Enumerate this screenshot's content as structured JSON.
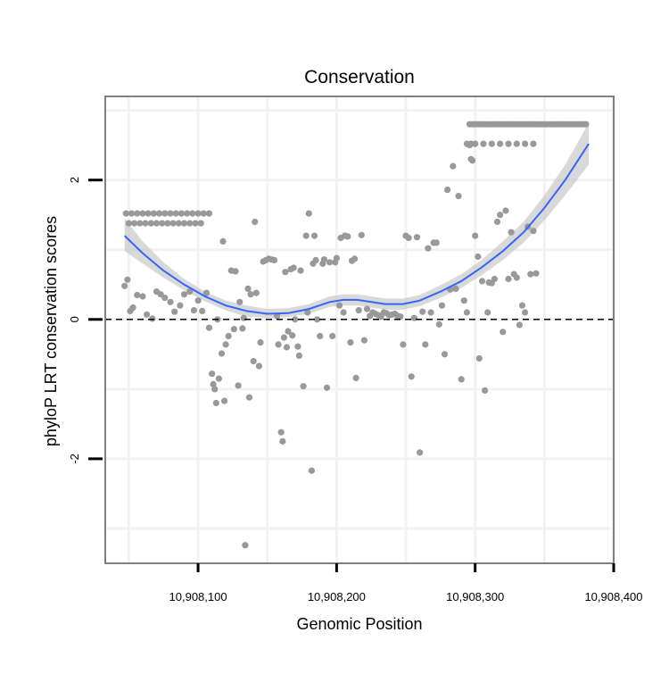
{
  "chart_data": {
    "type": "scatter",
    "title": "Conservation",
    "xlabel": "Genomic Position",
    "ylabel": "phyloP LRT conservation scores",
    "xlim": [
      10908033,
      10908400
    ],
    "ylim": [
      -3.5,
      3.2
    ],
    "x_ticks": [
      {
        "value": 10908100,
        "label": "10,908,100"
      },
      {
        "value": 10908200,
        "label": "10,908,200"
      },
      {
        "value": 10908300,
        "label": "10,908,300"
      },
      {
        "value": 10908400,
        "label": "10,908,400"
      }
    ],
    "y_ticks": [
      {
        "value": -2,
        "label": "-2"
      },
      {
        "value": 0,
        "label": "0"
      },
      {
        "value": 2,
        "label": "2"
      }
    ],
    "x_minor_grid": [
      10908050,
      10908150,
      10908250,
      10908350
    ],
    "y_minor_grid": [
      -3,
      -1,
      1,
      3
    ],
    "grid": true,
    "reference_line": {
      "y": 0,
      "style": "dashed"
    },
    "colors": {
      "points": "#999999",
      "smooth_line": "#3366FF",
      "ribbon": "#BFBFBF",
      "panel_border": "#808080",
      "grid": "#F2F2F2"
    },
    "series": [
      {
        "kind": "points",
        "points": [
          [
            10908048,
            1.52
          ],
          [
            10908052,
            1.52
          ],
          [
            10908056,
            1.52
          ],
          [
            10908060,
            1.52
          ],
          [
            10908064,
            1.52
          ],
          [
            10908068,
            1.52
          ],
          [
            10908072,
            1.52
          ],
          [
            10908076,
            1.52
          ],
          [
            10908080,
            1.52
          ],
          [
            10908084,
            1.52
          ],
          [
            10908088,
            1.52
          ],
          [
            10908092,
            1.52
          ],
          [
            10908096,
            1.52
          ],
          [
            10908100,
            1.52
          ],
          [
            10908104,
            1.52
          ],
          [
            10908108,
            1.52
          ],
          [
            10908050,
            1.38
          ],
          [
            10908054,
            1.38
          ],
          [
            10908058,
            1.38
          ],
          [
            10908062,
            1.38
          ],
          [
            10908066,
            1.38
          ],
          [
            10908070,
            1.38
          ],
          [
            10908074,
            1.38
          ],
          [
            10908078,
            1.38
          ],
          [
            10908082,
            1.38
          ],
          [
            10908086,
            1.38
          ],
          [
            10908090,
            1.38
          ],
          [
            10908094,
            1.38
          ],
          [
            10908098,
            1.38
          ],
          [
            10908102,
            1.38
          ],
          [
            10908047,
            0.48
          ],
          [
            10908049,
            0.57
          ],
          [
            10908051,
            0.12
          ],
          [
            10908053,
            0.17
          ],
          [
            10908056,
            0.35
          ],
          [
            10908060,
            0.33
          ],
          [
            10908063,
            0.07
          ],
          [
            10908067,
            0.01
          ],
          [
            10908070,
            0.4
          ],
          [
            10908073,
            0.36
          ],
          [
            10908076,
            0.31
          ],
          [
            10908080,
            0.25
          ],
          [
            10908083,
            0.11
          ],
          [
            10908087,
            0.2
          ],
          [
            10908090,
            0.36
          ],
          [
            10908094,
            0.4
          ],
          [
            10908097,
            0.13
          ],
          [
            10908100,
            0.27
          ],
          [
            10908103,
            0.12
          ],
          [
            10908106,
            0.38
          ],
          [
            10908108,
            -0.12
          ],
          [
            10908110,
            -0.78
          ],
          [
            10908111,
            -0.93
          ],
          [
            10908112,
            -1.0
          ],
          [
            10908113,
            -1.2
          ],
          [
            10908114,
            0.0
          ],
          [
            10908115,
            -0.85
          ],
          [
            10908117,
            -0.49
          ],
          [
            10908118,
            1.12
          ],
          [
            10908119,
            -1.17
          ],
          [
            10908120,
            -0.36
          ],
          [
            10908122,
            -0.24
          ],
          [
            10908124,
            0.7
          ],
          [
            10908126,
            -0.14
          ],
          [
            10908127,
            0.69
          ],
          [
            10908129,
            -0.95
          ],
          [
            10908130,
            0.25
          ],
          [
            10908132,
            -0.13
          ],
          [
            10908133,
            0.02
          ],
          [
            10908134,
            -3.24
          ],
          [
            10908136,
            0.44
          ],
          [
            10908137,
            -1.12
          ],
          [
            10908138,
            0.36
          ],
          [
            10908140,
            -0.6
          ],
          [
            10908141,
            1.4
          ],
          [
            10908142,
            0.38
          ],
          [
            10908144,
            -0.67
          ],
          [
            10908145,
            -0.33
          ],
          [
            10908147,
            0.83
          ],
          [
            10908149,
            0.85
          ],
          [
            10908151,
            0.87
          ],
          [
            10908153,
            0.86
          ],
          [
            10908155,
            0.85
          ],
          [
            10908157,
            0.05
          ],
          [
            10908158,
            -0.36
          ],
          [
            10908160,
            -1.62
          ],
          [
            10908161,
            -1.75
          ],
          [
            10908162,
            -0.26
          ],
          [
            10908163,
            0.68
          ],
          [
            10908164,
            -0.4
          ],
          [
            10908165,
            -0.17
          ],
          [
            10908167,
            0.72
          ],
          [
            10908168,
            -0.23
          ],
          [
            10908169,
            0.74
          ],
          [
            10908170,
            0.0
          ],
          [
            10908172,
            -0.39
          ],
          [
            10908173,
            -0.52
          ],
          [
            10908174,
            0.7
          ],
          [
            10908176,
            -0.96
          ],
          [
            10908178,
            1.2
          ],
          [
            10908179,
            0.1
          ],
          [
            10908180,
            1.52
          ],
          [
            10908182,
            -2.17
          ],
          [
            10908183,
            0.8
          ],
          [
            10908184,
            1.2
          ],
          [
            10908185,
            0.85
          ],
          [
            10908186,
            0.0
          ],
          [
            10908188,
            -0.24
          ],
          [
            10908190,
            0.8
          ],
          [
            10908191,
            0.86
          ],
          [
            10908193,
            -0.98
          ],
          [
            10908195,
            0.82
          ],
          [
            10908197,
            -0.24
          ],
          [
            10908199,
            0.82
          ],
          [
            10908200,
            0.88
          ],
          [
            10908202,
            0.2
          ],
          [
            10908203,
            1.17
          ],
          [
            10908205,
            0.1
          ],
          [
            10908206,
            1.2
          ],
          [
            10908208,
            1.19
          ],
          [
            10908210,
            -0.33
          ],
          [
            10908211,
            0.84
          ],
          [
            10908213,
            0.87
          ],
          [
            10908214,
            -0.84
          ],
          [
            10908216,
            0.13
          ],
          [
            10908218,
            1.21
          ],
          [
            10908220,
            -0.3
          ],
          [
            10908222,
            0.15
          ],
          [
            10908224,
            0.05
          ],
          [
            10908226,
            0.1
          ],
          [
            10908228,
            0.08
          ],
          [
            10908230,
            0.06
          ],
          [
            10908232,
            0.04
          ],
          [
            10908234,
            0.1
          ],
          [
            10908236,
            0.09
          ],
          [
            10908238,
            0.06
          ],
          [
            10908240,
            0.07
          ],
          [
            10908242,
            0.08
          ],
          [
            10908244,
            0.05
          ],
          [
            10908246,
            0.04
          ],
          [
            10908248,
            -0.36
          ],
          [
            10908250,
            1.2
          ],
          [
            10908252,
            1.17
          ],
          [
            10908254,
            -0.82
          ],
          [
            10908256,
            0.02
          ],
          [
            10908258,
            1.18
          ],
          [
            10908260,
            -1.91
          ],
          [
            10908262,
            0.11
          ],
          [
            10908264,
            -0.36
          ],
          [
            10908266,
            1.02
          ],
          [
            10908268,
            0.1
          ],
          [
            10908270,
            1.1
          ],
          [
            10908272,
            1.1
          ],
          [
            10908274,
            -0.07
          ],
          [
            10908276,
            0.2
          ],
          [
            10908278,
            -0.5
          ],
          [
            10908280,
            1.86
          ],
          [
            10908282,
            0.43
          ],
          [
            10908284,
            2.2
          ],
          [
            10908286,
            0.44
          ],
          [
            10908288,
            1.77
          ],
          [
            10908290,
            -0.86
          ],
          [
            10908292,
            0.27
          ],
          [
            10908294,
            0.1
          ],
          [
            10908296,
            2.5
          ],
          [
            10908297,
            2.3
          ],
          [
            10908298,
            2.28
          ],
          [
            10908300,
            1.2
          ],
          [
            10908302,
            0.9
          ],
          [
            10908303,
            -0.56
          ],
          [
            10908305,
            0.55
          ],
          [
            10908307,
            -1.02
          ],
          [
            10908309,
            0.1
          ],
          [
            10908310,
            0.53
          ],
          [
            10908312,
            0.52
          ],
          [
            10908314,
            0.58
          ],
          [
            10908316,
            1.4
          ],
          [
            10908318,
            1.5
          ],
          [
            10908320,
            -0.18
          ],
          [
            10908322,
            1.56
          ],
          [
            10908324,
            0.58
          ],
          [
            10908326,
            1.25
          ],
          [
            10908328,
            0.65
          ],
          [
            10908330,
            0.6
          ],
          [
            10908332,
            -0.08
          ],
          [
            10908334,
            0.2
          ],
          [
            10908336,
            0.1
          ],
          [
            10908338,
            1.33
          ],
          [
            10908340,
            0.65
          ],
          [
            10908342,
            1.27
          ],
          [
            10908344,
            0.66
          ],
          [
            10908294,
            2.52
          ],
          [
            10908297,
            2.52
          ],
          [
            10908300,
            2.52
          ],
          [
            10908306,
            2.52
          ],
          [
            10908312,
            2.52
          ],
          [
            10908318,
            2.52
          ],
          [
            10908324,
            2.52
          ],
          [
            10908330,
            2.52
          ],
          [
            10908336,
            2.52
          ],
          [
            10908342,
            2.52
          ],
          [
            10908296,
            2.8
          ],
          [
            10908298,
            2.8
          ],
          [
            10908300,
            2.8
          ],
          [
            10908302,
            2.8
          ],
          [
            10908304,
            2.8
          ],
          [
            10908306,
            2.8
          ],
          [
            10908308,
            2.8
          ],
          [
            10908310,
            2.8
          ],
          [
            10908312,
            2.8
          ],
          [
            10908314,
            2.8
          ],
          [
            10908316,
            2.8
          ],
          [
            10908318,
            2.8
          ],
          [
            10908320,
            2.8
          ],
          [
            10908322,
            2.8
          ],
          [
            10908324,
            2.8
          ],
          [
            10908326,
            2.8
          ],
          [
            10908328,
            2.8
          ],
          [
            10908330,
            2.8
          ],
          [
            10908332,
            2.8
          ],
          [
            10908334,
            2.8
          ],
          [
            10908336,
            2.8
          ],
          [
            10908338,
            2.8
          ],
          [
            10908340,
            2.8
          ],
          [
            10908342,
            2.8
          ],
          [
            10908344,
            2.8
          ],
          [
            10908346,
            2.8
          ],
          [
            10908348,
            2.8
          ],
          [
            10908350,
            2.8
          ],
          [
            10908352,
            2.8
          ],
          [
            10908354,
            2.8
          ],
          [
            10908356,
            2.8
          ],
          [
            10908358,
            2.8
          ],
          [
            10908360,
            2.8
          ],
          [
            10908362,
            2.8
          ],
          [
            10908364,
            2.8
          ],
          [
            10908366,
            2.8
          ],
          [
            10908368,
            2.8
          ],
          [
            10908370,
            2.8
          ],
          [
            10908372,
            2.8
          ],
          [
            10908374,
            2.8
          ],
          [
            10908376,
            2.8
          ],
          [
            10908378,
            2.8
          ],
          [
            10908380,
            2.8
          ]
        ]
      },
      {
        "kind": "smooth",
        "x": [
          10908047,
          10908060,
          10908075,
          10908090,
          10908105,
          10908120,
          10908135,
          10908150,
          10908165,
          10908180,
          10908195,
          10908205,
          10908215,
          10908225,
          10908235,
          10908248,
          10908260,
          10908275,
          10908290,
          10908305,
          10908320,
          10908335,
          10908350,
          10908365,
          10908382
        ],
        "y": [
          1.2,
          0.95,
          0.7,
          0.5,
          0.33,
          0.2,
          0.12,
          0.08,
          0.09,
          0.15,
          0.25,
          0.28,
          0.28,
          0.25,
          0.22,
          0.22,
          0.27,
          0.4,
          0.55,
          0.75,
          0.98,
          1.25,
          1.6,
          2.0,
          2.52
        ],
        "lower": [
          0.98,
          0.8,
          0.6,
          0.42,
          0.26,
          0.13,
          0.04,
          0.02,
          0.03,
          0.08,
          0.18,
          0.2,
          0.2,
          0.17,
          0.14,
          0.14,
          0.19,
          0.31,
          0.45,
          0.64,
          0.85,
          1.1,
          1.42,
          1.78,
          2.22
        ],
        "upper": [
          1.45,
          1.12,
          0.82,
          0.58,
          0.4,
          0.27,
          0.2,
          0.15,
          0.16,
          0.22,
          0.33,
          0.36,
          0.36,
          0.33,
          0.3,
          0.3,
          0.35,
          0.49,
          0.65,
          0.86,
          1.12,
          1.4,
          1.78,
          2.22,
          2.82
        ]
      }
    ]
  }
}
